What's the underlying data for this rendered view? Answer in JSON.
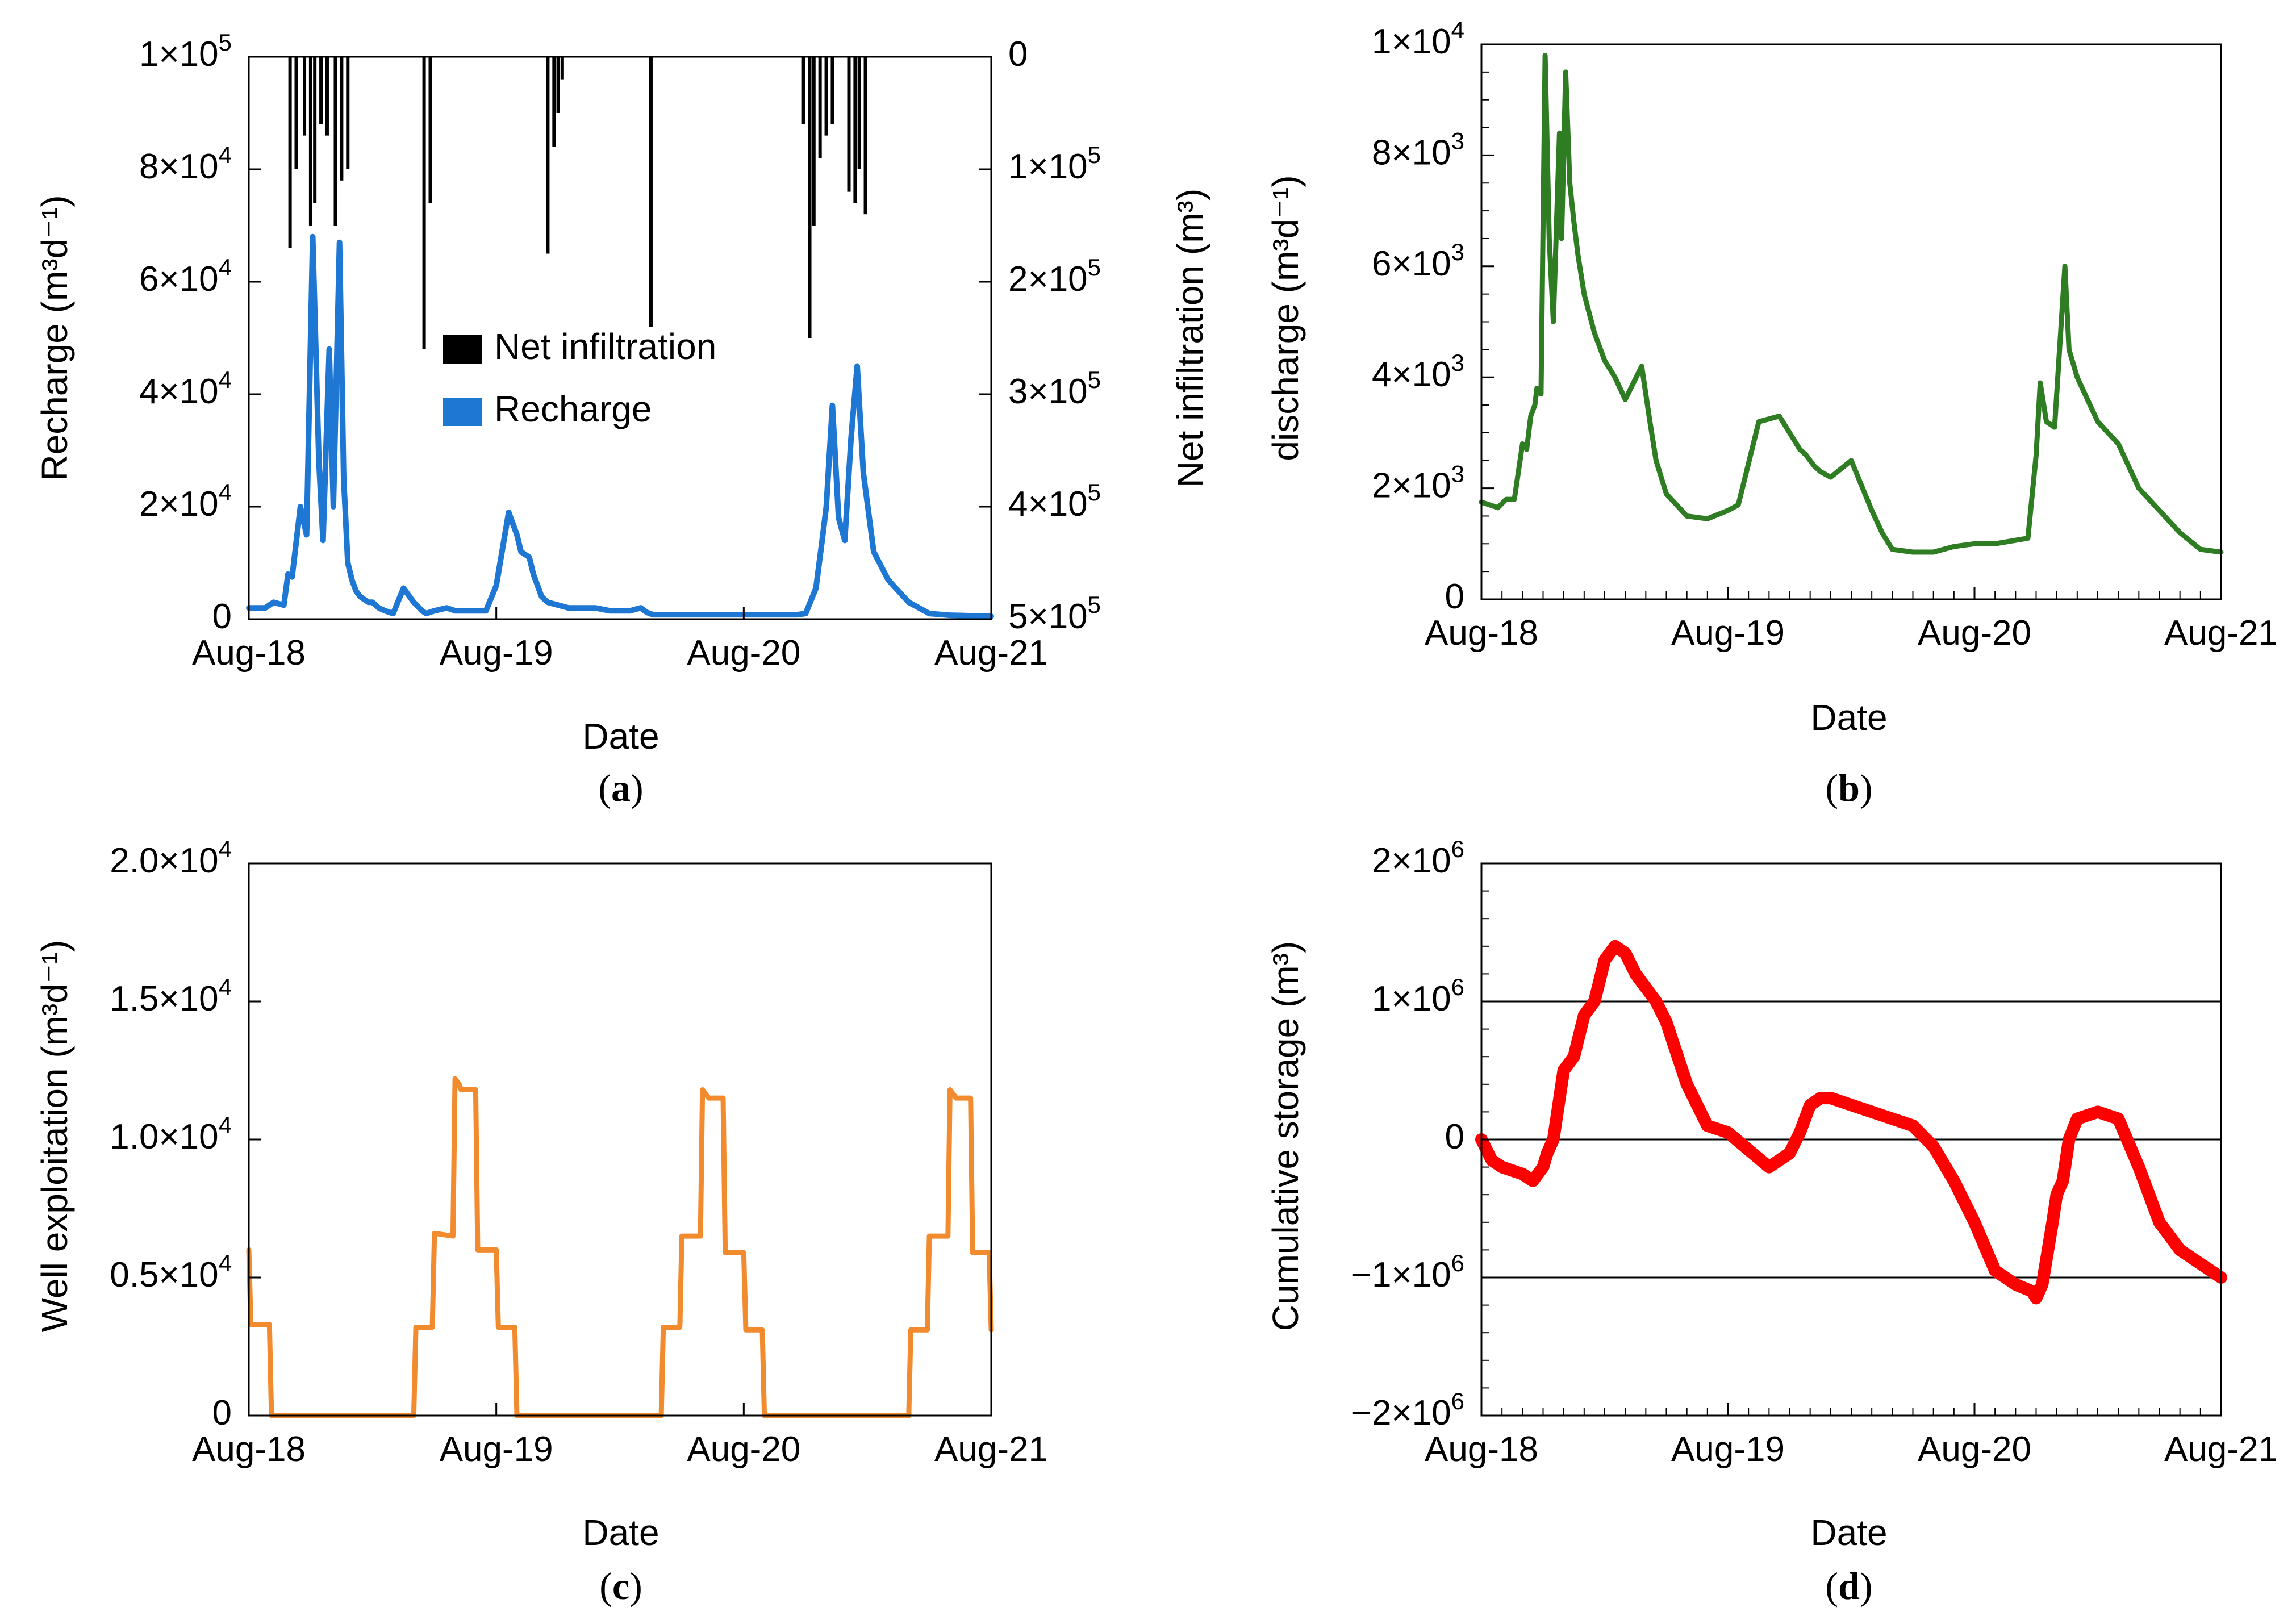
{
  "panel_labels": [
    "a",
    "b",
    "c",
    "d"
  ],
  "chart_data": [
    {
      "id": "a",
      "type": "bar+line",
      "xlabel": "Date",
      "ylabel": "Recharge",
      "ylabel_unit": "(m³d⁻¹)",
      "y2label": "Net infiltration",
      "y2label_unit": "(m³)",
      "x_ticks": [
        "Aug-18",
        "Aug-19",
        "Aug-20",
        "Aug-21"
      ],
      "y_ticks": [
        {
          "value": 0,
          "mant": "0",
          "exp": ""
        },
        {
          "value": 20000,
          "mant": "2×10",
          "exp": "4"
        },
        {
          "value": 40000,
          "mant": "4×10",
          "exp": "4"
        },
        {
          "value": 60000,
          "mant": "6×10",
          "exp": "4"
        },
        {
          "value": 80000,
          "mant": "8×10",
          "exp": "4"
        },
        {
          "value": 100000,
          "mant": "1×10",
          "exp": "5"
        }
      ],
      "y2_ticks": [
        {
          "value": 0,
          "mant": "0",
          "exp": ""
        },
        {
          "value": 100000,
          "mant": "1×10",
          "exp": "5"
        },
        {
          "value": 200000,
          "mant": "2×10",
          "exp": "5"
        },
        {
          "value": 300000,
          "mant": "3×10",
          "exp": "5"
        },
        {
          "value": 400000,
          "mant": "4×10",
          "exp": "5"
        },
        {
          "value": 500000,
          "mant": "5×10",
          "exp": "5"
        }
      ],
      "xlim": [
        0,
        36
      ],
      "ylim": [
        0,
        100000
      ],
      "y2lim": [
        0,
        500000
      ],
      "y2_inverted": true,
      "legend": [
        "Net infiltration",
        "Recharge"
      ],
      "colors": {
        "Net infiltration": "#000000",
        "Recharge": "#1f77d4"
      },
      "series": [
        {
          "name": "Recharge",
          "x": [
            0,
            0.8,
            1.2,
            1.7,
            1.9,
            2.1,
            2.5,
            2.8,
            3.1,
            3.4,
            3.6,
            3.9,
            4.1,
            4.4,
            4.6,
            4.8,
            5.0,
            5.2,
            5.4,
            5.6,
            5.8,
            6.0,
            6.3,
            6.6,
            7.0,
            7.5,
            8.0,
            8.4,
            8.6,
            9.0,
            9.6,
            10.0,
            10.5,
            11.0,
            11.5,
            12.0,
            12.6,
            13.0,
            13.2,
            13.6,
            13.8,
            14.2,
            14.5,
            15.0,
            15.5,
            16.0,
            16.8,
            17.5,
            18.5,
            19.0,
            19.3,
            19.6,
            20.0,
            21.0,
            22.0,
            23.0,
            24.0,
            25.0,
            26.6,
            27.0,
            27.5,
            27.8,
            28.0,
            28.3,
            28.6,
            28.9,
            29.2,
            29.5,
            29.8,
            30.3,
            31.0,
            32.0,
            33.0,
            34.0,
            36.0
          ],
          "values": [
            2000,
            2000,
            3000,
            2500,
            8000,
            7500,
            20000,
            15000,
            68000,
            28000,
            14000,
            48000,
            20000,
            67000,
            25000,
            10000,
            7000,
            5000,
            4000,
            3500,
            3000,
            3000,
            2000,
            1500,
            1000,
            5500,
            3000,
            1500,
            1000,
            1500,
            2000,
            1500,
            1500,
            1500,
            1500,
            6000,
            19000,
            15000,
            12000,
            11000,
            8000,
            4000,
            3000,
            2500,
            2000,
            2000,
            2000,
            1500,
            1500,
            2000,
            1200,
            800,
            800,
            800,
            800,
            800,
            800,
            800,
            800,
            1000,
            5500,
            14000,
            20000,
            38000,
            18000,
            14000,
            32000,
            45000,
            26000,
            12000,
            7000,
            3000,
            1000,
            700,
            500
          ]
        },
        {
          "name": "Net infiltration",
          "x": [
            2.0,
            2.3,
            2.7,
            3.0,
            3.2,
            3.5,
            3.8,
            4.2,
            4.5,
            4.8,
            8.5,
            8.8,
            14.5,
            14.8,
            15.0,
            15.2,
            19.5,
            26.9,
            27.2,
            27.4,
            27.7,
            28.0,
            28.3,
            29.1,
            29.4,
            29.6,
            29.9
          ],
          "values": [
            170000,
            100000,
            70000,
            150000,
            130000,
            60000,
            70000,
            150000,
            110000,
            100000,
            260000,
            130000,
            175000,
            80000,
            50000,
            20000,
            240000,
            60000,
            250000,
            150000,
            90000,
            70000,
            60000,
            120000,
            130000,
            100000,
            140000
          ]
        }
      ]
    },
    {
      "id": "b",
      "type": "line",
      "xlabel": "Date",
      "ylabel": "discharge",
      "ylabel_unit": "(m³d⁻¹)",
      "x_ticks": [
        "Aug-18",
        "Aug-19",
        "Aug-20",
        "Aug-21"
      ],
      "y_ticks": [
        {
          "value": 0,
          "mant": "0",
          "exp": ""
        },
        {
          "value": 2000,
          "mant": "2×10",
          "exp": "3"
        },
        {
          "value": 4000,
          "mant": "4×10",
          "exp": "3"
        },
        {
          "value": 6000,
          "mant": "6×10",
          "exp": "3"
        },
        {
          "value": 8000,
          "mant": "8×10",
          "exp": "3"
        },
        {
          "value": 10000,
          "mant": "1×10",
          "exp": "4"
        }
      ],
      "xlim": [
        0,
        36
      ],
      "ylim": [
        0,
        10000
      ],
      "color": "#2e7d22",
      "series": [
        {
          "name": "discharge",
          "x": [
            0,
            0.8,
            1.2,
            1.6,
            2.0,
            2.2,
            2.4,
            2.6,
            2.7,
            2.9,
            3.1,
            3.3,
            3.5,
            3.8,
            3.9,
            4.1,
            4.3,
            4.5,
            4.7,
            5.0,
            5.5,
            6.0,
            6.5,
            7.0,
            7.8,
            8.2,
            8.5,
            9.0,
            10.0,
            11.0,
            12.0,
            12.5,
            13.5,
            14.5,
            15.0,
            15.5,
            15.8,
            16.0,
            16.2,
            16.5,
            17.0,
            18.0,
            19.0,
            19.5,
            20.0,
            21.0,
            22.0,
            23.0,
            24.0,
            25.0,
            26.6,
            27.0,
            27.2,
            27.5,
            27.9,
            28.4,
            28.6,
            29.0,
            30.0,
            31.0,
            32.0,
            33.0,
            34.0,
            35.0,
            36.0
          ],
          "values": [
            1750,
            1650,
            1800,
            1800,
            2800,
            2700,
            3300,
            3500,
            3800,
            3700,
            9800,
            6500,
            5000,
            8400,
            6500,
            9500,
            7500,
            6800,
            6200,
            5500,
            4800,
            4300,
            4000,
            3600,
            4200,
            3200,
            2500,
            1900,
            1500,
            1450,
            1600,
            1700,
            3200,
            3300,
            3000,
            2700,
            2600,
            2500,
            2400,
            2300,
            2200,
            2500,
            1600,
            1200,
            900,
            850,
            850,
            950,
            1000,
            1000,
            1100,
            2600,
            3900,
            3200,
            3100,
            6000,
            4500,
            4000,
            3200,
            2800,
            2000,
            1600,
            1200,
            900,
            850
          ]
        }
      ]
    },
    {
      "id": "c",
      "type": "line",
      "xlabel": "Date",
      "ylabel": "Well exploitation",
      "ylabel_unit": "(m³d⁻¹)",
      "x_ticks": [
        "Aug-18",
        "Aug-19",
        "Aug-20",
        "Aug-21"
      ],
      "y_ticks": [
        {
          "value": 0,
          "mant": "0",
          "exp": ""
        },
        {
          "value": 5000,
          "mant": "0.5×10",
          "exp": "4"
        },
        {
          "value": 10000,
          "mant": "1.0×10",
          "exp": "4"
        },
        {
          "value": 15000,
          "mant": "1.5×10",
          "exp": "4"
        },
        {
          "value": 20000,
          "mant": "2.0×10",
          "exp": "4"
        }
      ],
      "xlim": [
        0,
        36
      ],
      "ylim": [
        0,
        20000
      ],
      "color": "#f28a2e",
      "series": [
        {
          "name": "Well exploitation",
          "x": [
            0,
            0.1,
            1.0,
            1.1,
            8.0,
            8.1,
            8.9,
            9.0,
            9.9,
            10.0,
            10.2,
            10.3,
            11.0,
            11.1,
            12.0,
            12.1,
            12.9,
            13.0,
            20.0,
            20.1,
            20.9,
            21.0,
            21.9,
            22.0,
            22.2,
            22.3,
            23.0,
            23.1,
            24.0,
            24.1,
            24.9,
            25.0,
            32.0,
            32.1,
            32.9,
            33.0,
            33.9,
            34.0,
            34.2,
            34.3,
            35.0,
            35.1,
            35.9,
            36.0
          ],
          "values": [
            6000,
            3300,
            3300,
            0,
            0,
            3200,
            3200,
            6600,
            6500,
            12200,
            12000,
            11800,
            11800,
            6000,
            6000,
            3200,
            3200,
            0,
            0,
            3200,
            3200,
            6500,
            6500,
            11800,
            11600,
            11500,
            11500,
            5900,
            5900,
            3100,
            3100,
            0,
            0,
            3100,
            3100,
            6500,
            6500,
            11800,
            11600,
            11500,
            11500,
            5900,
            5900,
            3100
          ]
        }
      ]
    },
    {
      "id": "d",
      "type": "line",
      "xlabel": "Date",
      "ylabel": "Cumulative storage",
      "ylabel_unit": "(m³)",
      "x_ticks": [
        "Aug-18",
        "Aug-19",
        "Aug-20",
        "Aug-21"
      ],
      "y_ticks": [
        {
          "value": -2000000,
          "mant": "−2×10",
          "exp": "6"
        },
        {
          "value": -1000000,
          "mant": "−1×10",
          "exp": "6"
        },
        {
          "value": 0,
          "mant": "0",
          "exp": ""
        },
        {
          "value": 1000000,
          "mant": "1×10",
          "exp": "6"
        },
        {
          "value": 2000000,
          "mant": "2×10",
          "exp": "6"
        }
      ],
      "gridlines": [
        -1000000,
        0,
        1000000
      ],
      "xlim": [
        0,
        36
      ],
      "ylim": [
        -2000000,
        2000000
      ],
      "color": "#ff0000",
      "series": [
        {
          "name": "Cumulative storage",
          "x": [
            0,
            0.5,
            1.0,
            2.0,
            2.5,
            3.0,
            3.2,
            3.5,
            4.0,
            4.5,
            5.0,
            5.5,
            6.0,
            6.5,
            7.0,
            7.5,
            8.0,
            8.5,
            9.0,
            10.0,
            11.0,
            12.0,
            14.0,
            15.0,
            15.5,
            16.0,
            16.5,
            17.0,
            18.0,
            19.0,
            20.0,
            21.0,
            22.0,
            23.0,
            24.0,
            25.0,
            26.0,
            26.8,
            27.0,
            27.3,
            27.8,
            28.0,
            28.3,
            28.6,
            29.0,
            30.0,
            31.0,
            32.0,
            33.0,
            34.0,
            35.0,
            36.0
          ],
          "values": [
            0,
            -150000,
            -200000,
            -250000,
            -300000,
            -200000,
            -100000,
            0,
            500000,
            600000,
            900000,
            1000000,
            1300000,
            1400000,
            1350000,
            1200000,
            1100000,
            1000000,
            850000,
            400000,
            100000,
            50000,
            -200000,
            -100000,
            50000,
            250000,
            300000,
            300000,
            250000,
            200000,
            150000,
            100000,
            -50000,
            -300000,
            -600000,
            -950000,
            -1050000,
            -1100000,
            -1150000,
            -1050000,
            -600000,
            -400000,
            -300000,
            0,
            150000,
            200000,
            150000,
            -200000,
            -600000,
            -800000,
            -900000,
            -1000000
          ]
        }
      ]
    }
  ]
}
